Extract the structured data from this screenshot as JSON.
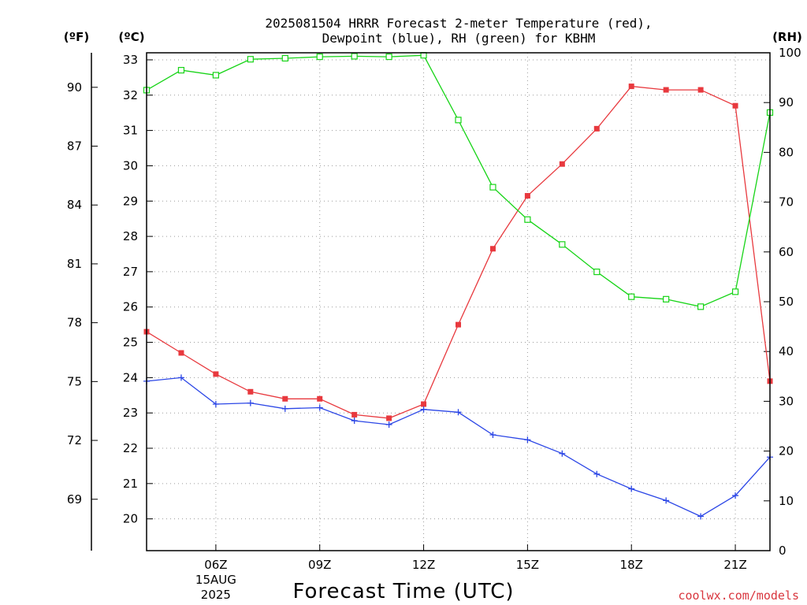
{
  "chart_data": {
    "type": "line",
    "title_line1": "2025081504 HRRR Forecast 2-meter Temperature (red),",
    "title_line2": "Dewpoint (blue), RH (green) for KBHM",
    "xlabel": "Forecast Time (UTC)",
    "credit": "coolwx.com/models",
    "unit_labels": {
      "fahrenheit": "(ºF)",
      "celsius": "(ºC)",
      "rh": "(RH)"
    },
    "x": [
      "04Z",
      "05Z",
      "06Z",
      "07Z",
      "08Z",
      "09Z",
      "10Z",
      "11Z",
      "12Z",
      "13Z",
      "14Z",
      "15Z",
      "16Z",
      "17Z",
      "18Z",
      "19Z",
      "20Z",
      "21Z",
      "22Z"
    ],
    "x_ticks": [
      {
        "label": "06Z",
        "sub1": "15AUG",
        "sub2": "2025",
        "at": "06Z"
      },
      {
        "label": "09Z",
        "sub1": "",
        "sub2": "",
        "at": "09Z"
      },
      {
        "label": "12Z",
        "sub1": "",
        "sub2": "",
        "at": "12Z"
      },
      {
        "label": "15Z",
        "sub1": "",
        "sub2": "",
        "at": "15Z"
      },
      {
        "label": "18Z",
        "sub1": "",
        "sub2": "",
        "at": "18Z"
      },
      {
        "label": "21Z",
        "sub1": "",
        "sub2": "",
        "at": "21Z"
      }
    ],
    "celsius_axis": {
      "ylim": [
        19.1,
        33.2
      ],
      "ticks": [
        "20",
        "21",
        "22",
        "23",
        "24",
        "25",
        "26",
        "27",
        "28",
        "29",
        "30",
        "31",
        "32",
        "33"
      ]
    },
    "fahrenheit_axis": {
      "ticks": [
        "69",
        "72",
        "75",
        "78",
        "81",
        "84",
        "87",
        "90"
      ]
    },
    "rh_axis": {
      "ylim": [
        0,
        100
      ],
      "ticks": [
        "0",
        "10",
        "20",
        "30",
        "40",
        "50",
        "60",
        "70",
        "80",
        "90",
        "100"
      ]
    },
    "grid": true,
    "series": [
      {
        "name": "Temperature",
        "axis": "celsius",
        "color": "#e8393e",
        "marker": "filled-square",
        "values": [
          25.3,
          24.7,
          24.1,
          23.6,
          23.4,
          23.4,
          22.95,
          22.85,
          23.25,
          25.5,
          27.65,
          29.15,
          30.05,
          31.05,
          32.25,
          32.15,
          32.15,
          31.7,
          23.9
        ]
      },
      {
        "name": "Dewpoint",
        "axis": "celsius",
        "color": "#2b46e6",
        "marker": "plus",
        "values": [
          23.9,
          24.0,
          23.25,
          23.28,
          23.12,
          23.15,
          22.78,
          22.67,
          23.1,
          23.02,
          22.38,
          22.24,
          21.85,
          21.27,
          20.85,
          20.52,
          20.07,
          20.66,
          21.75
        ]
      },
      {
        "name": "RH",
        "axis": "rh",
        "color": "#17d417",
        "marker": "open-square",
        "values": [
          92.5,
          96.5,
          95.5,
          98.7,
          98.9,
          99.2,
          99.3,
          99.2,
          99.5,
          86.5,
          73.0,
          66.5,
          61.5,
          56.0,
          51.0,
          50.5,
          49.0,
          52.0,
          88.0
        ]
      }
    ]
  }
}
